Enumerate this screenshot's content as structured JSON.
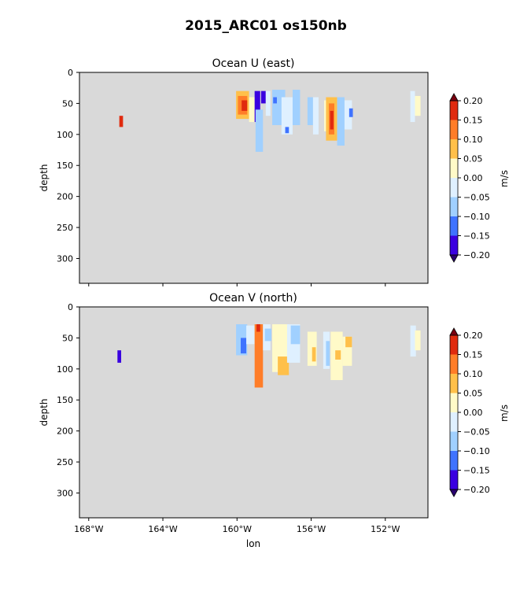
{
  "figure": {
    "title": "2015_ARC01 os150nb"
  },
  "colors": {
    "background": "#d9d9d9",
    "levels": [
      -0.2,
      -0.15,
      -0.1,
      -0.05,
      0.0,
      0.05,
      0.1,
      0.15,
      0.2
    ],
    "fills": [
      "#3a00e0",
      "#3f73ff",
      "#a0d0ff",
      "#dff0ff",
      "#fffac8",
      "#ffc04a",
      "#ff7d28",
      "#e02a0e"
    ],
    "under": "#2a0070",
    "over": "#7a0010"
  },
  "chart_data": [
    {
      "type": "heatmap",
      "title": "Ocean U (east)",
      "xlabel": "",
      "ylabel": "depth",
      "xlim": [
        -168.5,
        -149.7
      ],
      "ylim": [
        340,
        0
      ],
      "xticks": [
        -168,
        -164,
        -160,
        -156,
        -152
      ],
      "xtick_labels": [
        "",
        "",
        "",
        "",
        ""
      ],
      "yticks": [
        0,
        50,
        100,
        150,
        200,
        250,
        300
      ],
      "colorbar": {
        "label": "m/s",
        "ticks": [
          "0.20",
          "0.15",
          "0.10",
          "0.05",
          "0.00",
          "−0.05",
          "−0.10",
          "−0.15",
          "−0.20"
        ]
      },
      "patches": [
        {
          "lon": [
            -166.35,
            -166.15
          ],
          "depth": [
            70,
            88
          ],
          "value": 0.15
        },
        {
          "lon": [
            -160.05,
            -159.35
          ],
          "depth": [
            30,
            75
          ],
          "value": 0.08
        },
        {
          "lon": [
            -159.95,
            -159.45
          ],
          "depth": [
            38,
            68
          ],
          "value": 0.13
        },
        {
          "lon": [
            -159.75,
            -159.45
          ],
          "depth": [
            45,
            62
          ],
          "value": 0.18
        },
        {
          "lon": [
            -159.35,
            -158.95
          ],
          "depth": [
            40,
            80
          ],
          "value": 0.03
        },
        {
          "lon": [
            -159.05,
            -158.75
          ],
          "depth": [
            30,
            80
          ],
          "value": -0.17
        },
        {
          "lon": [
            -159.0,
            -158.6
          ],
          "depth": [
            60,
            128
          ],
          "value": -0.08
        },
        {
          "lon": [
            -158.7,
            -158.45
          ],
          "depth": [
            30,
            50
          ],
          "value": -0.17
        },
        {
          "lon": [
            -158.45,
            -158.2
          ],
          "depth": [
            30,
            70
          ],
          "value": -0.03
        },
        {
          "lon": [
            -158.1,
            -157.4
          ],
          "depth": [
            28,
            85
          ],
          "value": -0.08
        },
        {
          "lon": [
            -158.05,
            -157.85
          ],
          "depth": [
            40,
            50
          ],
          "value": -0.13
        },
        {
          "lon": [
            -157.6,
            -157.0
          ],
          "depth": [
            40,
            100
          ],
          "value": -0.03
        },
        {
          "lon": [
            -157.4,
            -157.2
          ],
          "depth": [
            88,
            98
          ],
          "value": -0.13
        },
        {
          "lon": [
            -157.0,
            -156.6
          ],
          "depth": [
            28,
            85
          ],
          "value": -0.08
        },
        {
          "lon": [
            -156.2,
            -155.9
          ],
          "depth": [
            40,
            85
          ],
          "value": -0.08
        },
        {
          "lon": [
            -155.9,
            -155.6
          ],
          "depth": [
            40,
            100
          ],
          "value": -0.03
        },
        {
          "lon": [
            -155.3,
            -154.95
          ],
          "depth": [
            45,
            95
          ],
          "value": 0.03
        },
        {
          "lon": [
            -155.2,
            -154.6
          ],
          "depth": [
            40,
            110
          ],
          "value": 0.08
        },
        {
          "lon": [
            -155.05,
            -154.75
          ],
          "depth": [
            50,
            100
          ],
          "value": 0.13
        },
        {
          "lon": [
            -154.98,
            -154.8
          ],
          "depth": [
            62,
            92
          ],
          "value": 0.18
        },
        {
          "lon": [
            -154.6,
            -154.2
          ],
          "depth": [
            40,
            118
          ],
          "value": -0.08
        },
        {
          "lon": [
            -154.2,
            -153.8
          ],
          "depth": [
            45,
            92
          ],
          "value": -0.03
        },
        {
          "lon": [
            -153.95,
            -153.75
          ],
          "depth": [
            58,
            72
          ],
          "value": -0.13
        },
        {
          "lon": [
            -150.65,
            -150.4
          ],
          "depth": [
            30,
            80
          ],
          "value": -0.03
        },
        {
          "lon": [
            -150.4,
            -150.1
          ],
          "depth": [
            38,
            70
          ],
          "value": 0.03
        }
      ]
    },
    {
      "type": "heatmap",
      "title": "Ocean V (north)",
      "xlabel": "lon",
      "ylabel": "depth",
      "xlim": [
        -168.5,
        -149.7
      ],
      "ylim": [
        340,
        0
      ],
      "xticks": [
        -168,
        -164,
        -160,
        -156,
        -152
      ],
      "xtick_labels": [
        "168°W",
        "164°W",
        "160°W",
        "156°W",
        "152°W"
      ],
      "yticks": [
        0,
        50,
        100,
        150,
        200,
        250,
        300
      ],
      "colorbar": {
        "label": "m/s",
        "ticks": [
          "0.20",
          "0.15",
          "0.10",
          "0.05",
          "0.00",
          "−0.05",
          "−0.10",
          "−0.15",
          "−0.20"
        ]
      },
      "patches": [
        {
          "lon": [
            -166.45,
            -166.25
          ],
          "depth": [
            70,
            90
          ],
          "value": -0.18
        },
        {
          "lon": [
            -160.05,
            -159.45
          ],
          "depth": [
            28,
            78
          ],
          "value": -0.08
        },
        {
          "lon": [
            -159.8,
            -159.5
          ],
          "depth": [
            50,
            75
          ],
          "value": -0.13
        },
        {
          "lon": [
            -159.5,
            -159.05
          ],
          "depth": [
            30,
            60
          ],
          "value": -0.03
        },
        {
          "lon": [
            -159.05,
            -158.6
          ],
          "depth": [
            28,
            130
          ],
          "value": 0.13
        },
        {
          "lon": [
            -158.95,
            -158.75
          ],
          "depth": [
            28,
            40
          ],
          "value": 0.18
        },
        {
          "lon": [
            -158.6,
            -158.2
          ],
          "depth": [
            28,
            70
          ],
          "value": -0.03
        },
        {
          "lon": [
            -158.5,
            -158.15
          ],
          "depth": [
            35,
            55
          ],
          "value": -0.08
        },
        {
          "lon": [
            -158.1,
            -157.2
          ],
          "depth": [
            28,
            105
          ],
          "value": 0.03
        },
        {
          "lon": [
            -157.8,
            -157.2
          ],
          "depth": [
            80,
            110
          ],
          "value": 0.08
        },
        {
          "lon": [
            -157.3,
            -156.6
          ],
          "depth": [
            28,
            90
          ],
          "value": -0.03
        },
        {
          "lon": [
            -157.1,
            -156.6
          ],
          "depth": [
            30,
            60
          ],
          "value": -0.08
        },
        {
          "lon": [
            -156.2,
            -155.7
          ],
          "depth": [
            40,
            95
          ],
          "value": 0.03
        },
        {
          "lon": [
            -155.95,
            -155.75
          ],
          "depth": [
            65,
            88
          ],
          "value": 0.08
        },
        {
          "lon": [
            -155.35,
            -155.0
          ],
          "depth": [
            40,
            100
          ],
          "value": -0.03
        },
        {
          "lon": [
            -155.2,
            -155.0
          ],
          "depth": [
            55,
            95
          ],
          "value": -0.08
        },
        {
          "lon": [
            -154.95,
            -154.3
          ],
          "depth": [
            40,
            118
          ],
          "value": 0.03
        },
        {
          "lon": [
            -154.7,
            -154.4
          ],
          "depth": [
            70,
            85
          ],
          "value": 0.08
        },
        {
          "lon": [
            -154.3,
            -153.8
          ],
          "depth": [
            48,
            95
          ],
          "value": 0.03
        },
        {
          "lon": [
            -154.15,
            -153.8
          ],
          "depth": [
            48,
            65
          ],
          "value": 0.08
        },
        {
          "lon": [
            -150.65,
            -150.35
          ],
          "depth": [
            30,
            80
          ],
          "value": -0.03
        },
        {
          "lon": [
            -150.4,
            -150.1
          ],
          "depth": [
            38,
            70
          ],
          "value": 0.03
        }
      ]
    }
  ]
}
